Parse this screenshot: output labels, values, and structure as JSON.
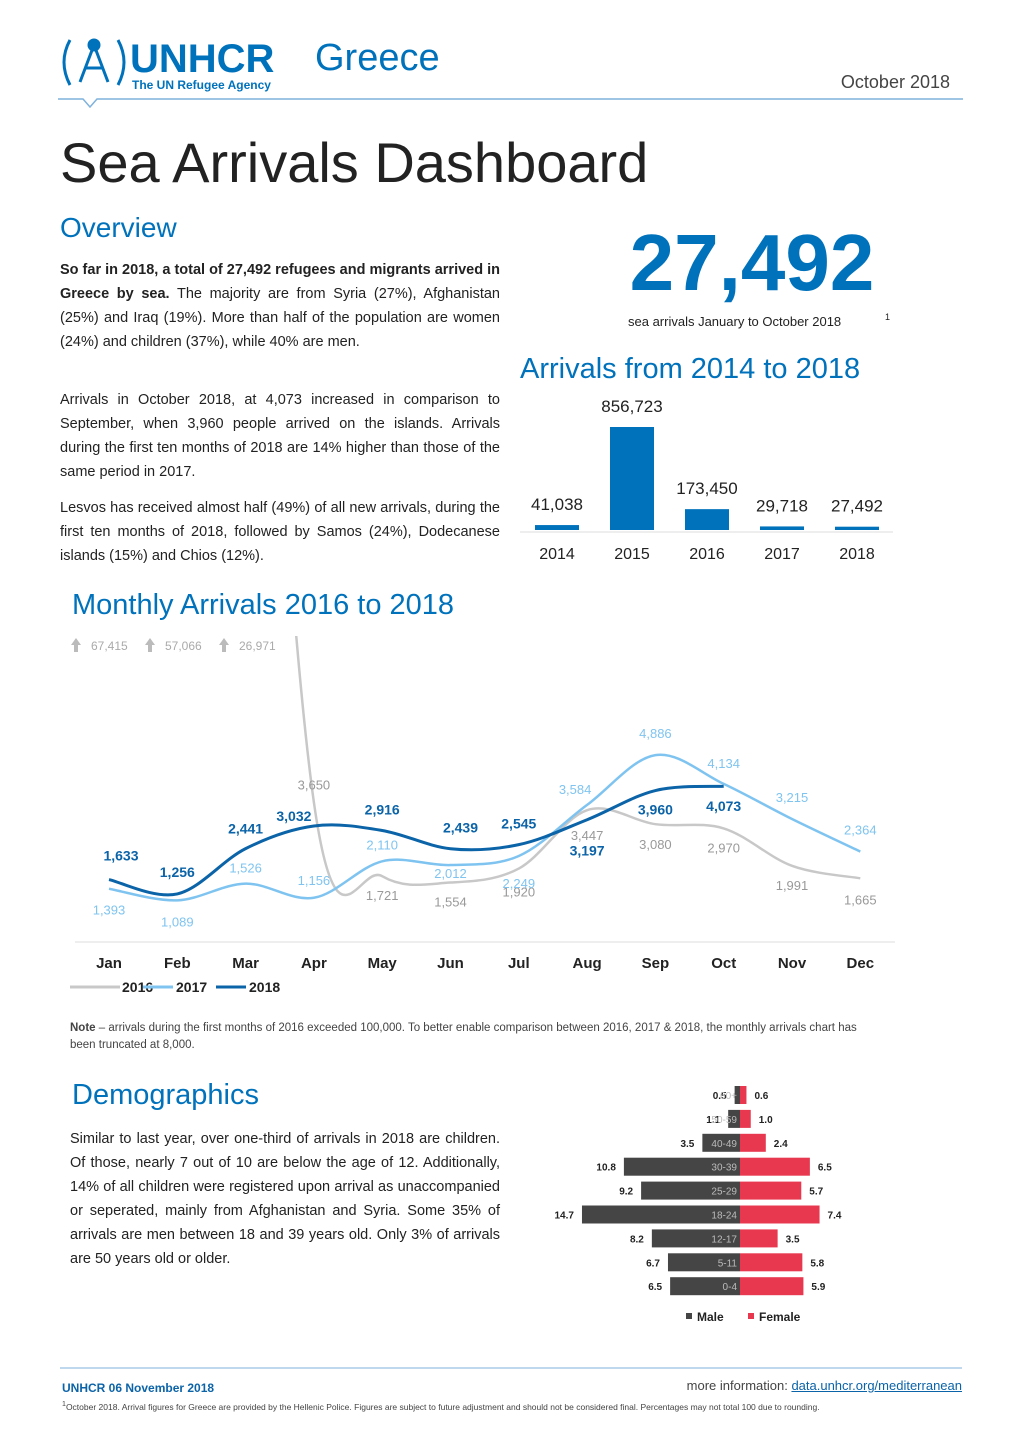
{
  "header": {
    "org": "UNHCR",
    "org_sub": "The UN Refugee Agency",
    "country": "Greece",
    "date": "October 2018"
  },
  "title": "Sea Arrivals Dashboard",
  "overview": {
    "heading": "Overview",
    "paragraphs": [
      {
        "bold": "So far in 2018, a total of 27,492 refugees and migrants arrived in Greece by sea.",
        "text": " The majority are from Syria (27%), Afghanistan (25%) and Iraq (19%). More than half of the population are women (24%) and children (37%), while 40% are men."
      },
      {
        "text": "Arrivals in October 2018, at 4,073 increased in comparison to September, when 3,960 people arrived on the islands. Arrivals during the first ten months of 2018 are 14% higher than those of the same period in 2017."
      },
      {
        "text": "Lesvos has received almost half (49%) of all new arrivals, during the first ten months of 2018, followed by Samos (24%), Dodecanese islands (15%) and Chios (12%)."
      }
    ]
  },
  "kpi": {
    "value": "27,492",
    "caption": "sea arrivals January to October 2018",
    "footnote_mark": "1"
  },
  "chart_data": [
    {
      "type": "bar",
      "title": "Arrivals from 2014 to 2018",
      "categories": [
        "2014",
        "2015",
        "2016",
        "2017",
        "2018"
      ],
      "values": [
        41038,
        856723,
        173450,
        29718,
        27492
      ],
      "value_labels": [
        "41,038",
        "856,723",
        "173,450",
        "29,718",
        "27,492"
      ],
      "color": "#0072bc"
    },
    {
      "type": "line",
      "title": "Monthly Arrivals 2016 to 2018",
      "categories": [
        "Jan",
        "Feb",
        "Mar",
        "Apr",
        "May",
        "Jun",
        "Jul",
        "Aug",
        "Sep",
        "Oct",
        "Nov",
        "Dec"
      ],
      "ylim": [
        0,
        8000
      ],
      "series": [
        {
          "name": "2016",
          "color": "#c8c8c8",
          "values": [
            67415,
            57066,
            26971,
            3650,
            1721,
            1554,
            1920,
            3447,
            3080,
            2970,
            1991,
            1665
          ],
          "value_labels": [
            "67,415",
            "57,066",
            "26,971",
            "3,650",
            "1,721",
            "1,554",
            "1,920",
            "3,447",
            "3,080",
            "2,970",
            "1,991",
            "1,665"
          ]
        },
        {
          "name": "2017",
          "color": "#7fc4f0",
          "values": [
            1393,
            1089,
            1526,
            1156,
            2110,
            2012,
            2249,
            3584,
            4886,
            4134,
            3215,
            2364
          ],
          "value_labels": [
            "1,393",
            "1,089",
            "1,526",
            "1,156",
            "2,110",
            "2,012",
            "2,249",
            "3,584",
            "4,886",
            "4,134",
            "3,215",
            "2,364"
          ]
        },
        {
          "name": "2018",
          "color": "#0b63a8",
          "values": [
            1633,
            1256,
            2441,
            3032,
            2916,
            2439,
            2545,
            3197,
            3960,
            4073,
            null,
            null
          ],
          "value_labels": [
            "1,633",
            "1,256",
            "2,441",
            "3,032",
            "2,916",
            "2,439",
            "2,545",
            "3,197",
            "3,960",
            "4,073",
            null,
            null
          ]
        }
      ],
      "note_label": "Note",
      "note_text": " – arrivals during the first months of 2016 exceeded 100,000. To better enable comparison between 2016, 2017 & 2018, the monthly arrivals chart has been truncated at 8,000."
    },
    {
      "type": "pyramid",
      "title": "Demographics",
      "categories": [
        "60+",
        "50-59",
        "40-49",
        "30-39",
        "25-29",
        "18-24",
        "12-17",
        "5-11",
        "0-4"
      ],
      "series": [
        {
          "name": "Male",
          "color": "#454545",
          "values": [
            0.5,
            1.1,
            3.5,
            10.8,
            9.2,
            14.7,
            8.2,
            6.7,
            6.5
          ],
          "value_labels": [
            "0.5",
            "1.1",
            "3.5",
            "10.8",
            "9.2",
            "14.7",
            "8.2",
            "6.7",
            "6.5"
          ]
        },
        {
          "name": "Female",
          "color": "#e8384f",
          "values": [
            0.6,
            1.0,
            2.4,
            6.5,
            5.7,
            7.4,
            3.5,
            5.8,
            5.9
          ],
          "value_labels": [
            "0.6",
            "1.0",
            "2.4",
            "6.5",
            "5.7",
            "7.4",
            "3.5",
            "5.8",
            "5.9"
          ]
        }
      ],
      "text": "Similar to last year, over one-third of arrivals in 2018 are children. Of those, nearly 7 out of 10 are below the age of 12. Additionally, 14% of all children were registered upon arrival as unaccompanied or seperated, mainly from Afghanistan and Syria. Some 35% of arrivals are men between 18 and 39 years old. Only 3% of arrivals are 50 years old or older."
    }
  ],
  "footer": {
    "source": "UNHCR 06 November 2018",
    "more_info": "more information: ",
    "link": "data.unhcr.org/mediterranean",
    "footnote_mark": "1",
    "footnote": "October 2018. Arrival figures for Greece are provided by the Hellenic Police. Figures are subject to future adjustment and should not be considered final. Percentages may not total 100 due to rounding."
  }
}
